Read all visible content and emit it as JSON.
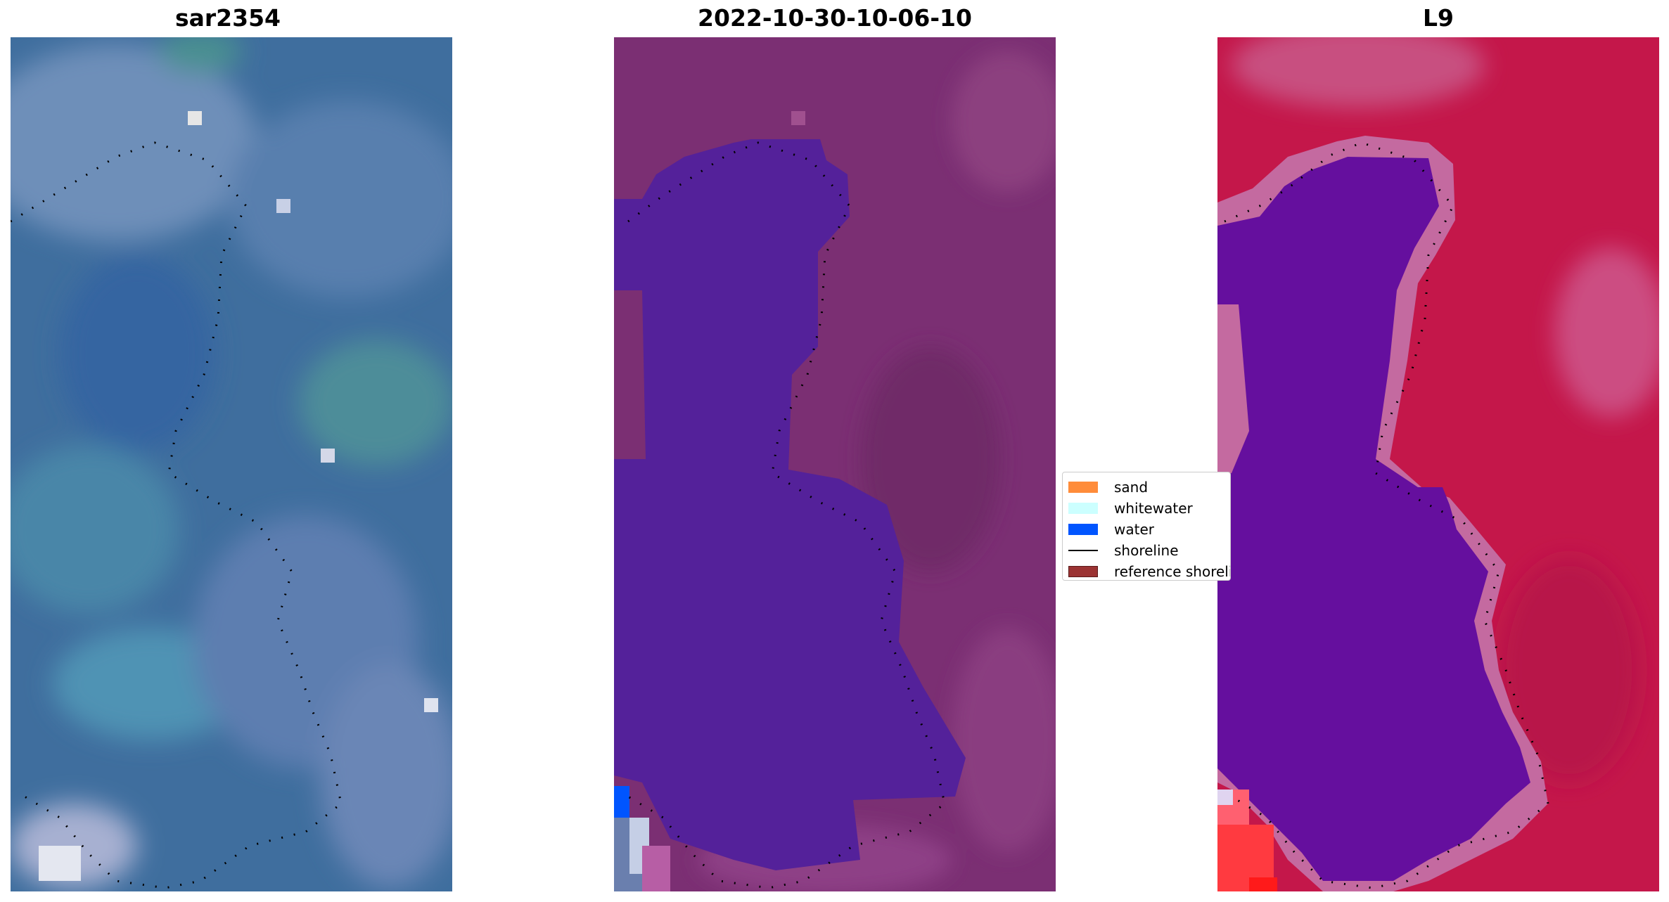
{
  "panels": [
    {
      "title": "sar2354"
    },
    {
      "title": "2022-10-30-10-06-10"
    },
    {
      "title": "L9"
    }
  ],
  "legend": {
    "items": [
      {
        "label": "sand",
        "color": "#ff8c3a"
      },
      {
        "label": "whitewater",
        "color": "#ccffff"
      },
      {
        "label": "water",
        "color": "#0055ff"
      },
      {
        "label": "shoreline",
        "color": "#000000"
      },
      {
        "label": "reference shoreline",
        "color": "#9b3333"
      }
    ]
  },
  "colors": {
    "rgb_base": "#3f6e9e",
    "rgb_light": "#7e93bb",
    "rgb_teal": "#4d8d99",
    "class_land": "#7b2f73",
    "class_water": "#54219a",
    "class_sand": "#ff8c3a",
    "ndwi_land": "#c4174a",
    "ndwi_water": "#650f9e",
    "ndwi_edge": "#c46aa0"
  }
}
